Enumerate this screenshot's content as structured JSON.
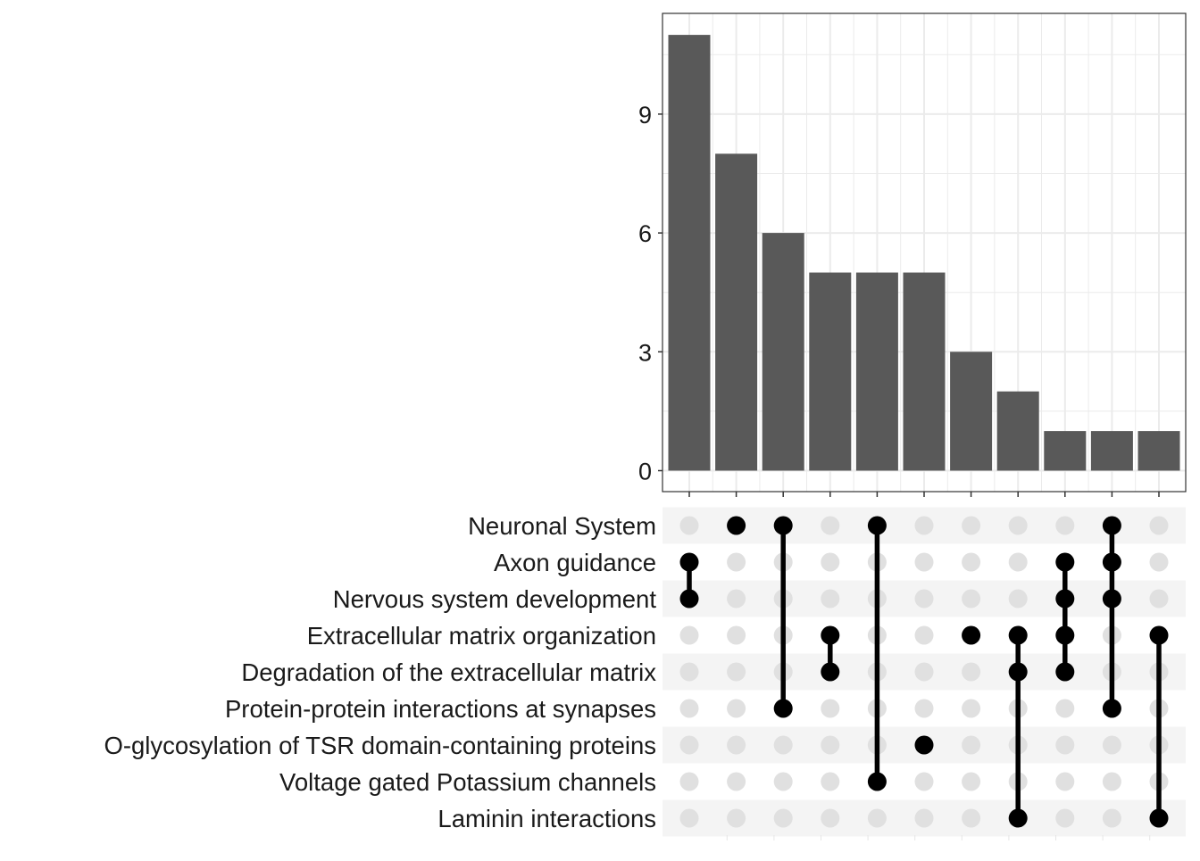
{
  "chart_data": {
    "type": "bar",
    "subtype": "upset",
    "title": "",
    "xlabel": "",
    "ylabel": "",
    "ylim": [
      0,
      11.5
    ],
    "yticks": [
      0,
      3,
      6,
      9
    ],
    "grid": true,
    "colors": {
      "bar": "#595959",
      "dot_active": "#000000",
      "dot_inactive": "#e0e0e0",
      "stripe": "#f4f4f4",
      "grid": "#ebebeb",
      "panel_border": "#333333"
    },
    "sets": [
      "Neuronal System",
      "Axon guidance",
      "Nervous system development",
      "Extracellular matrix organization",
      "Degradation of the extracellular matrix",
      "Protein-protein interactions at synapses",
      "O-glycosylation of TSR domain-containing proteins",
      "Voltage gated Potassium channels",
      "Laminin interactions"
    ],
    "intersections": [
      {
        "value": 11,
        "members": [
          1,
          2
        ]
      },
      {
        "value": 8,
        "members": [
          0
        ]
      },
      {
        "value": 6,
        "members": [
          0,
          5
        ]
      },
      {
        "value": 5,
        "members": [
          3,
          4
        ]
      },
      {
        "value": 5,
        "members": [
          0,
          7
        ]
      },
      {
        "value": 5,
        "members": [
          6
        ]
      },
      {
        "value": 3,
        "members": [
          3
        ]
      },
      {
        "value": 2,
        "members": [
          3,
          4,
          8
        ]
      },
      {
        "value": 1,
        "members": [
          1,
          2,
          3,
          4
        ]
      },
      {
        "value": 1,
        "members": [
          0,
          1,
          2,
          5
        ]
      },
      {
        "value": 1,
        "members": [
          3,
          8
        ]
      }
    ]
  }
}
